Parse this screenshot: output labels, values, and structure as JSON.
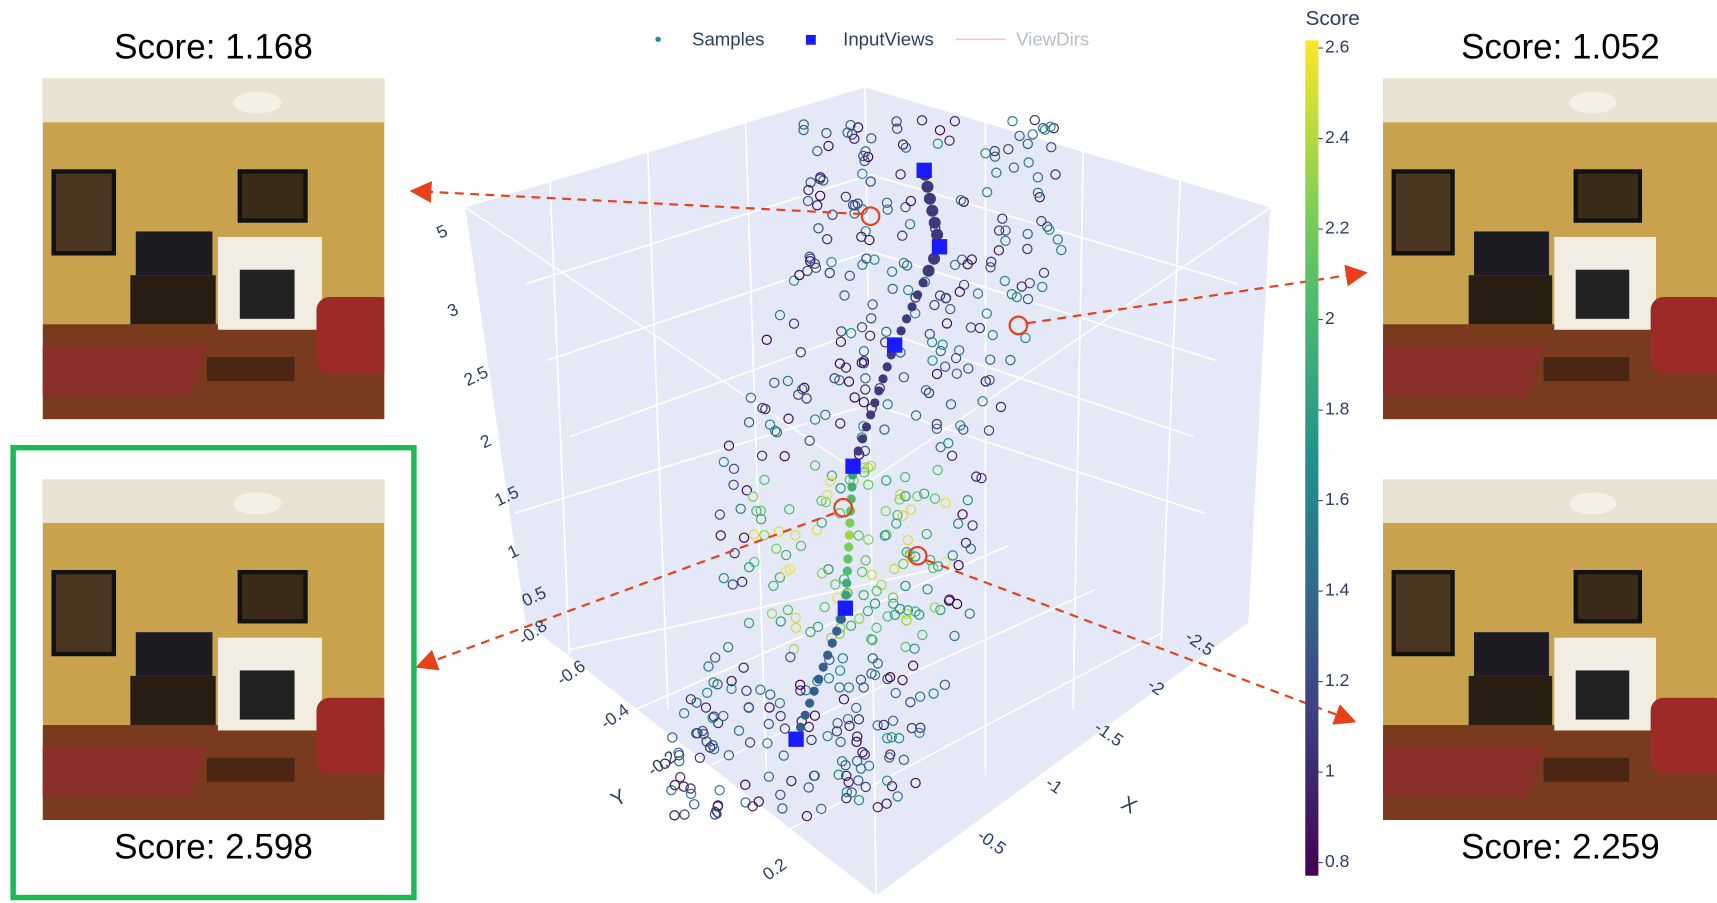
{
  "legend": [
    "Samples",
    "InputViews",
    "ViewDirs"
  ],
  "colorbar": {
    "title": "Score",
    "ticks": [
      0.8,
      1,
      1.2,
      1.4,
      1.6,
      1.8,
      2,
      2.2,
      2.4,
      2.6
    ]
  },
  "axes": {
    "z_ticks": [
      "5",
      "3",
      "2.5",
      "2",
      "1.5",
      "1",
      "0.5"
    ],
    "y_ticks": [
      "-0.8",
      "-0.6",
      "-0.4",
      "-0.2",
      "0",
      "0.2"
    ],
    "x_ticks": [
      "-2.5",
      "-2",
      "-1.5",
      "-1",
      "-0.5"
    ],
    "x_title": "X",
    "y_title": "Y"
  },
  "views": [
    {
      "label": "Score: 1.168"
    },
    {
      "label": "Score: 1.052"
    },
    {
      "label": "Score: 2.598"
    },
    {
      "label": "Score: 2.259"
    }
  ]
}
